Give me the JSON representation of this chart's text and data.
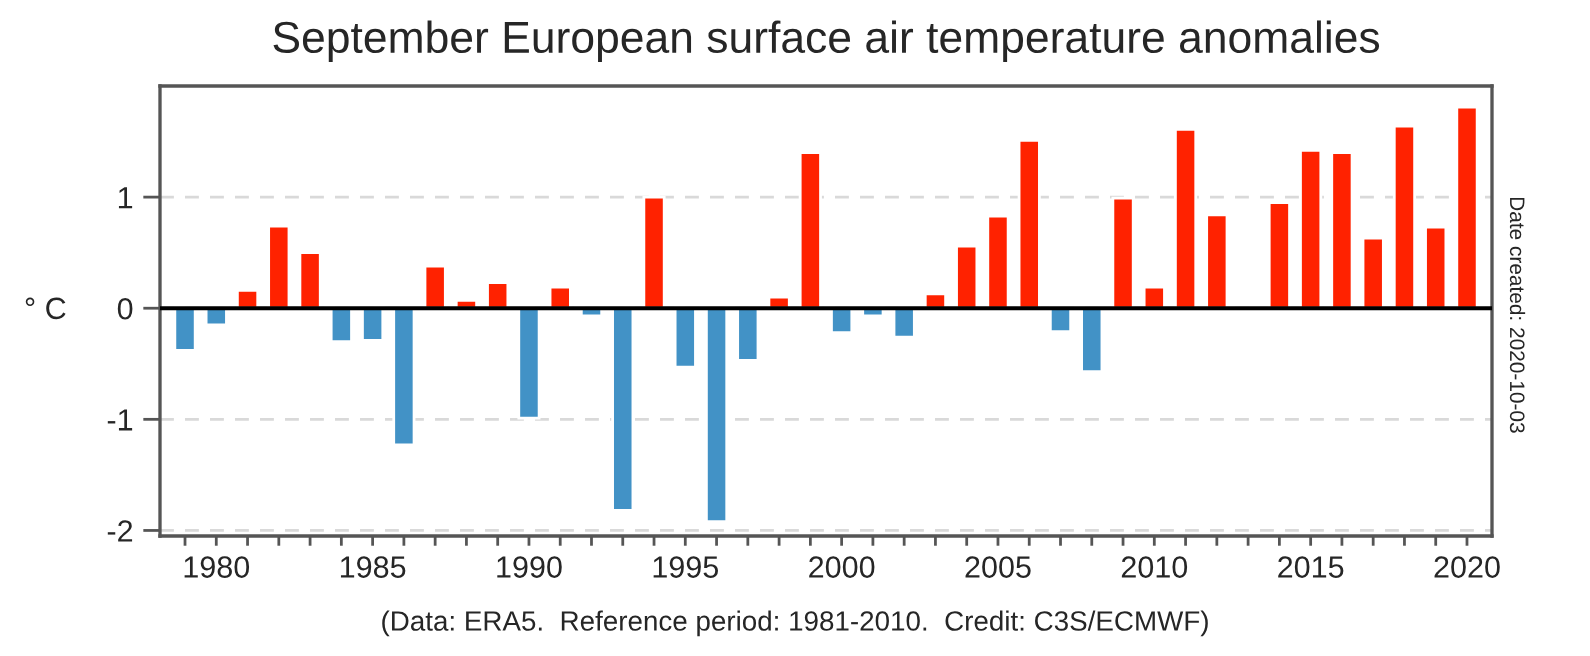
{
  "chart_data": {
    "type": "bar",
    "title": "September European surface air temperature anomalies",
    "ylabel": "° C",
    "annotations": [
      "(Data: ERA5.  Reference period: 1981-2010.  Credit: C3S/ECMWF)",
      "Date created: 2020-10-03"
    ],
    "x": [
      1979,
      1980,
      1981,
      1982,
      1983,
      1984,
      1985,
      1986,
      1987,
      1988,
      1989,
      1990,
      1991,
      1992,
      1993,
      1994,
      1995,
      1996,
      1997,
      1998,
      1999,
      2000,
      2001,
      2002,
      2003,
      2004,
      2005,
      2006,
      2007,
      2008,
      2009,
      2010,
      2011,
      2012,
      2013,
      2014,
      2015,
      2016,
      2017,
      2018,
      2019,
      2020
    ],
    "values": [
      -0.38,
      -0.15,
      0.16,
      0.74,
      0.5,
      -0.3,
      -0.29,
      -1.23,
      0.38,
      0.07,
      0.23,
      -0.99,
      0.19,
      -0.07,
      -1.82,
      1.0,
      -0.53,
      -1.92,
      -0.47,
      0.1,
      1.4,
      -0.22,
      -0.07,
      -0.26,
      0.13,
      0.56,
      0.83,
      1.51,
      -0.21,
      -0.57,
      0.99,
      0.19,
      1.61,
      0.84,
      null,
      0.95,
      1.42,
      1.4,
      0.63,
      1.64,
      0.73,
      1.81
    ],
    "colors": [
      "#4292c6",
      "#4292c6",
      "#ff2200",
      "#ff2200",
      "#ff2200",
      "#4292c6",
      "#4292c6",
      "#4292c6",
      "#ff2200",
      "#ff2200",
      "#ff2200",
      "#4292c6",
      "#ff2200",
      "#4292c6",
      "#4292c6",
      "#ff2200",
      "#4292c6",
      "#4292c6",
      "#4292c6",
      "#ff2200",
      "#ff2200",
      "#4292c6",
      "#4292c6",
      "#4292c6",
      "#ff2200",
      "#ff2200",
      "#ff2200",
      "#ff2200",
      "#4292c6",
      "#4292c6",
      "#ff2200",
      "#ff2200",
      "#ff2200",
      "#ff2200",
      "#ff2200",
      "#ff2200",
      "#ff2200",
      "#ff2200",
      "#ff2200",
      "#ff2200",
      "#ff2200",
      "#ff2200"
    ],
    "xlim": [
      1978.2,
      2020.8
    ],
    "ylim": [
      -2.05,
      2.0
    ],
    "xticks": [
      {
        "value": 1979,
        "label": null
      },
      1980,
      {
        "value": 1981,
        "label": null
      },
      {
        "value": 1982,
        "label": null
      },
      {
        "value": 1983,
        "label": null
      },
      {
        "value": 1984,
        "label": null
      },
      1985,
      {
        "value": 1986,
        "label": null
      },
      {
        "value": 1987,
        "label": null
      },
      {
        "value": 1988,
        "label": null
      },
      {
        "value": 1989,
        "label": null
      },
      1990,
      {
        "value": 1991,
        "label": null
      },
      {
        "value": 1992,
        "label": null
      },
      {
        "value": 1993,
        "label": null
      },
      {
        "value": 1994,
        "label": null
      },
      1995,
      {
        "value": 1996,
        "label": null
      },
      {
        "value": 1997,
        "label": null
      },
      {
        "value": 1998,
        "label": null
      },
      {
        "value": 1999,
        "label": null
      },
      2000,
      {
        "value": 2001,
        "label": null
      },
      {
        "value": 2002,
        "label": null
      },
      {
        "value": 2003,
        "label": null
      },
      {
        "value": 2004,
        "label": null
      },
      2005,
      {
        "value": 2006,
        "label": null
      },
      {
        "value": 2007,
        "label": null
      },
      {
        "value": 2008,
        "label": null
      },
      {
        "value": 2009,
        "label": null
      },
      2010,
      {
        "value": 2011,
        "label": null
      },
      {
        "value": 2012,
        "label": null
      },
      {
        "value": 2013,
        "label": null
      },
      {
        "value": 2014,
        "label": null
      },
      2015,
      {
        "value": 2016,
        "label": null
      },
      {
        "value": 2017,
        "label": null
      },
      {
        "value": 2018,
        "label": null
      },
      {
        "value": 2019,
        "label": null
      },
      2020
    ],
    "yticks": [
      -2,
      -1,
      0,
      1
    ],
    "grid": "y",
    "ref_lines": [
      {
        "axis": "y",
        "value": 0,
        "color": "#000000",
        "line_style": "solid"
      }
    ]
  }
}
